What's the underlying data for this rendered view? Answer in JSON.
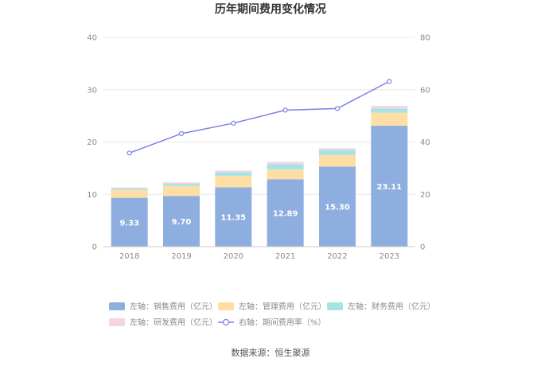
{
  "chart_data": {
    "type": "bar",
    "title": "历年期间费用变化情况",
    "categories": [
      "2018",
      "2019",
      "2020",
      "2021",
      "2022",
      "2023"
    ],
    "stacked": true,
    "series": [
      {
        "name": "左轴：销售费用（亿元）",
        "axis": "left",
        "color": "#8eaedf",
        "values": [
          9.33,
          9.7,
          11.35,
          12.89,
          15.3,
          23.11
        ],
        "show_labels": true
      },
      {
        "name": "左轴：管理费用（亿元）",
        "axis": "left",
        "color": "#fddfa6",
        "values": [
          1.5,
          1.9,
          2.2,
          1.9,
          2.2,
          2.5
        ],
        "show_labels": false
      },
      {
        "name": "左轴：财务费用（亿元）",
        "axis": "left",
        "color": "#a7e3e5",
        "values": [
          0.3,
          0.4,
          0.7,
          1.0,
          1.0,
          0.8
        ],
        "show_labels": false
      },
      {
        "name": "左轴：研发费用（亿元）",
        "axis": "left",
        "color": "#f5d4e4",
        "values": [
          0.2,
          0.3,
          0.3,
          0.4,
          0.3,
          0.5
        ],
        "show_labels": false
      },
      {
        "name": "右轴：期间费用率（%）",
        "axis": "right",
        "type": "line",
        "color": "#7b7fe8",
        "values": [
          35.8,
          43.2,
          47.2,
          52.2,
          52.8,
          63.2
        ]
      }
    ],
    "left_axis": {
      "min": 0,
      "max": 40,
      "ticks": [
        0,
        10,
        20,
        30,
        40
      ]
    },
    "right_axis": {
      "min": 0,
      "max": 80,
      "ticks": [
        0,
        20,
        40,
        60,
        80
      ]
    },
    "grid": true,
    "legend_position": "bottom",
    "source": "数据来源：恒生聚源"
  }
}
